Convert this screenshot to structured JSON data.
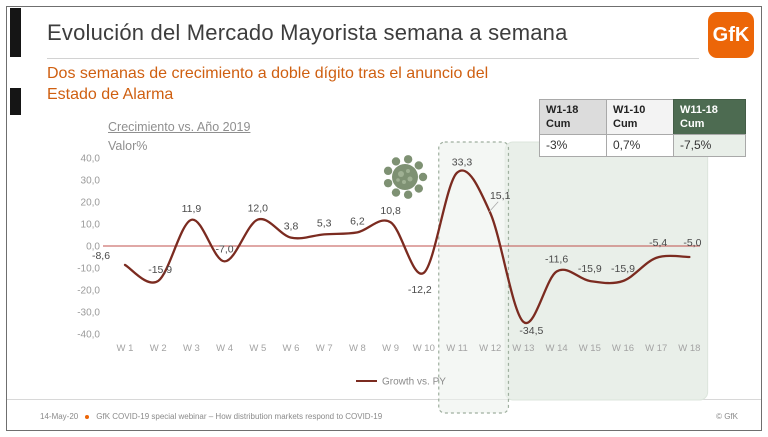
{
  "slide": {
    "title": "Evolución del Mercado Mayorista semana a semana",
    "subtitle_line1": "Dos semanas de crecimiento a doble dígito tras el anuncio del",
    "subtitle_line2": "Estado de Alarma",
    "logo": "GfK",
    "accent_color": "#cf5f10"
  },
  "summary_table": {
    "columns": [
      {
        "header_line1": "W1-18",
        "header_line2": "Cum",
        "value": "-3%"
      },
      {
        "header_line1": "W1-10",
        "header_line2": "Cum",
        "value": "0,7%"
      },
      {
        "header_line1": "W11-18",
        "header_line2": "Cum",
        "value": "-7,5%",
        "highlight_color": "#4d6b51"
      }
    ]
  },
  "chart_data": {
    "type": "line",
    "title": "Crecimiento vs. Año 2019",
    "subtitle": "Valor%",
    "categories": [
      "W 1",
      "W 2",
      "W 3",
      "W 4",
      "W 5",
      "W 6",
      "W 7",
      "W 8",
      "W 9",
      "W 10",
      "W 11",
      "W 12",
      "W 13",
      "W 14",
      "W 15",
      "W 16",
      "W 17",
      "W 18"
    ],
    "series": [
      {
        "name": "Growth vs. PY",
        "color": "#7b2b20",
        "values": [
          -8.6,
          -15.9,
          11.9,
          -7.0,
          12.0,
          3.8,
          5.3,
          6.2,
          10.8,
          -12.2,
          33.3,
          15.1,
          -34.5,
          -11.6,
          -15.9,
          -15.9,
          -5.4,
          -5.0
        ],
        "labels": [
          "-8,6",
          "-15,9",
          "11,9",
          "-7,0",
          "12,0",
          "3,8",
          "5,3",
          "6,2",
          "10,8",
          "-12,2",
          "33,3",
          "15,1",
          "-34,5",
          "-11,6",
          "-15,9",
          "-15,9",
          "-5,4",
          "-5,0"
        ]
      }
    ],
    "ylim": [
      -40,
      40
    ],
    "yticks": [
      "40,0",
      "30,0",
      "20,0",
      "10,0",
      "0,0",
      "-10,0",
      "-20,0",
      "-30,0",
      "-40,0"
    ],
    "grid": false,
    "zero_line_color": "#c0504d",
    "legend_position": "bottom",
    "highlights": {
      "dotted": {
        "from": "W 11",
        "to": "W 12",
        "fill": "#edf2ed",
        "border": "#9faf9f"
      },
      "shaded": {
        "from": "W 13",
        "to": "W 18",
        "fill": "#e9efe9",
        "border": "#dce5dc"
      }
    },
    "virus_icon_color": "#7e9173"
  },
  "footer": {
    "date": "14-May-20",
    "text": "GfK COVID-19 special webinar – How distribution markets respond to COVID-19",
    "copyright": "© GfK"
  }
}
